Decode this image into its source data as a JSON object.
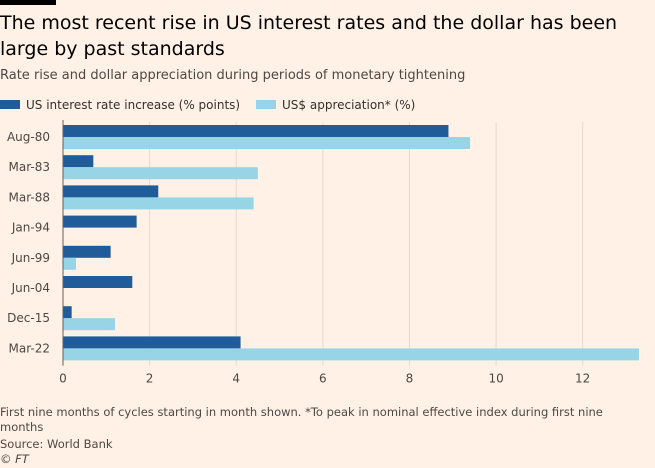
{
  "title": "The most recent rise in US interest rates and the dollar has been large by past standards",
  "subtitle": "Rate rise and dollar appreciation during periods of monetary tightening",
  "footnote": "First nine months of cycles starting in month shown. *To peak in nominal effective index during first nine months",
  "source": "Source: World Bank",
  "credit": "© FT",
  "colors": {
    "rate": "#1f5c99",
    "usd": "#96d4e6",
    "background": "#fff1e5"
  },
  "chart_data": {
    "type": "bar",
    "orientation": "horizontal",
    "categories": [
      "Aug-80",
      "Mar-83",
      "Mar-88",
      "Jan-94",
      "Jun-99",
      "Jun-04",
      "Dec-15",
      "Mar-22"
    ],
    "series": [
      {
        "name": "US interest rate increase (% points)",
        "color": "#1f5c99",
        "values": [
          8.9,
          0.7,
          2.2,
          1.7,
          1.1,
          1.6,
          0.2,
          4.1
        ]
      },
      {
        "name": "US$ appreciation* (%)",
        "color": "#96d4e6",
        "values": [
          9.4,
          4.5,
          4.4,
          null,
          0.3,
          null,
          1.2,
          13.3
        ]
      }
    ],
    "xlim": [
      0,
      13.3
    ],
    "xticks": [
      0,
      2,
      4,
      6,
      8,
      10,
      12
    ],
    "grid": true,
    "legend": "top-left"
  }
}
